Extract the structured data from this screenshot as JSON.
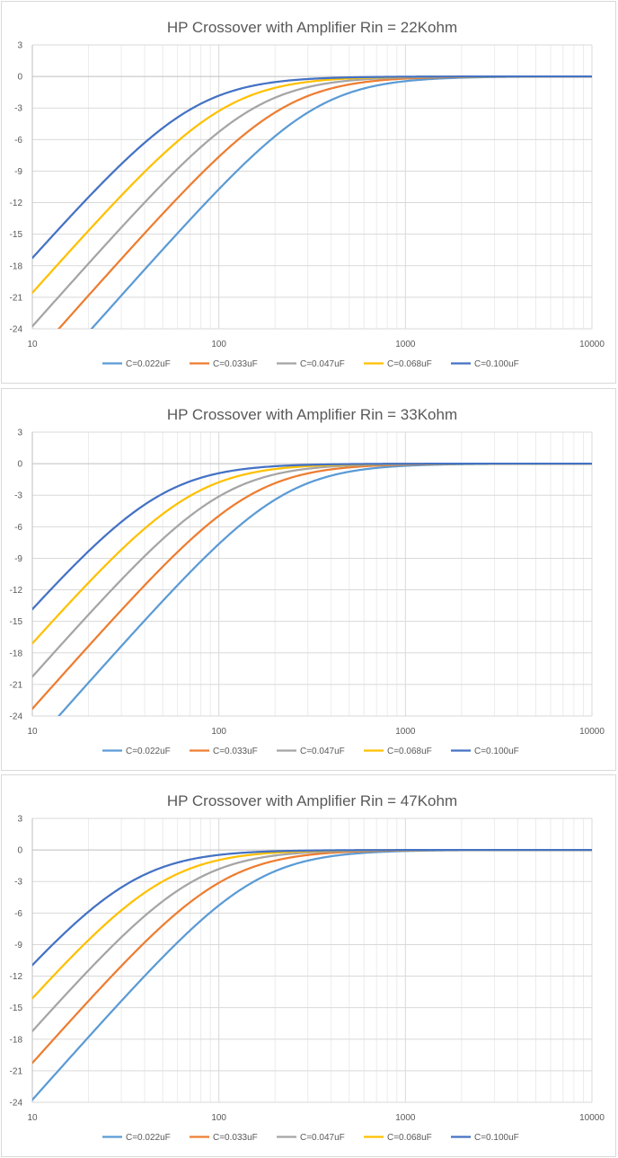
{
  "chart_data": [
    {
      "type": "line",
      "title": "HP Crossover with Amplifier Rin = 22Kohm",
      "rin_ohm": 22000,
      "x_scale": "log",
      "xlim": [
        10,
        10000
      ],
      "ylim": [
        -24,
        3
      ],
      "x_ticks": [
        "10",
        "100",
        "1000",
        "10000"
      ],
      "y_ticks": [
        "3",
        "0",
        "-3",
        "-6",
        "-9",
        "-12",
        "-15",
        "-18",
        "-21",
        "-24"
      ],
      "grid": true,
      "legend_position": "bottom",
      "series": [
        {
          "name": "C=0.022uF",
          "capacitance_uF": 0.022,
          "color": "#5b9bd5"
        },
        {
          "name": "C=0.033uF",
          "capacitance_uF": 0.033,
          "color": "#ed7d31"
        },
        {
          "name": "C=0.047uF",
          "capacitance_uF": 0.047,
          "color": "#a5a5a5"
        },
        {
          "name": "C=0.068uF",
          "capacitance_uF": 0.068,
          "color": "#ffc000"
        },
        {
          "name": "C=0.100uF",
          "capacitance_uF": 0.1,
          "color": "#4472c4"
        }
      ]
    },
    {
      "type": "line",
      "title": "HP Crossover with Amplifier Rin = 33Kohm",
      "rin_ohm": 33000,
      "x_scale": "log",
      "xlim": [
        10,
        10000
      ],
      "ylim": [
        -24,
        3
      ],
      "x_ticks": [
        "10",
        "100",
        "1000",
        "10000"
      ],
      "y_ticks": [
        "3",
        "0",
        "-3",
        "-6",
        "-9",
        "-12",
        "-15",
        "-18",
        "-21",
        "-24"
      ],
      "grid": true,
      "legend_position": "bottom",
      "series": [
        {
          "name": "C=0.022uF",
          "capacitance_uF": 0.022,
          "color": "#5b9bd5"
        },
        {
          "name": "C=0.033uF",
          "capacitance_uF": 0.033,
          "color": "#ed7d31"
        },
        {
          "name": "C=0.047uF",
          "capacitance_uF": 0.047,
          "color": "#a5a5a5"
        },
        {
          "name": "C=0.068uF",
          "capacitance_uF": 0.068,
          "color": "#ffc000"
        },
        {
          "name": "C=0.100uF",
          "capacitance_uF": 0.1,
          "color": "#4472c4"
        }
      ]
    },
    {
      "type": "line",
      "title": "HP Crossover with Amplifier Rin = 47Kohm",
      "rin_ohm": 47000,
      "x_scale": "log",
      "xlim": [
        10,
        10000
      ],
      "ylim": [
        -24,
        3
      ],
      "x_ticks": [
        "10",
        "100",
        "1000",
        "10000"
      ],
      "y_ticks": [
        "3",
        "0",
        "-3",
        "-6",
        "-9",
        "-12",
        "-15",
        "-18",
        "-21",
        "-24"
      ],
      "grid": true,
      "legend_position": "bottom",
      "series": [
        {
          "name": "C=0.022uF",
          "capacitance_uF": 0.022,
          "color": "#5b9bd5"
        },
        {
          "name": "C=0.033uF",
          "capacitance_uF": 0.033,
          "color": "#ed7d31"
        },
        {
          "name": "C=0.047uF",
          "capacitance_uF": 0.047,
          "color": "#a5a5a5"
        },
        {
          "name": "C=0.068uF",
          "capacitance_uF": 0.068,
          "color": "#ffc000"
        },
        {
          "name": "C=0.100uF",
          "capacitance_uF": 0.1,
          "color": "#4472c4"
        }
      ]
    }
  ]
}
